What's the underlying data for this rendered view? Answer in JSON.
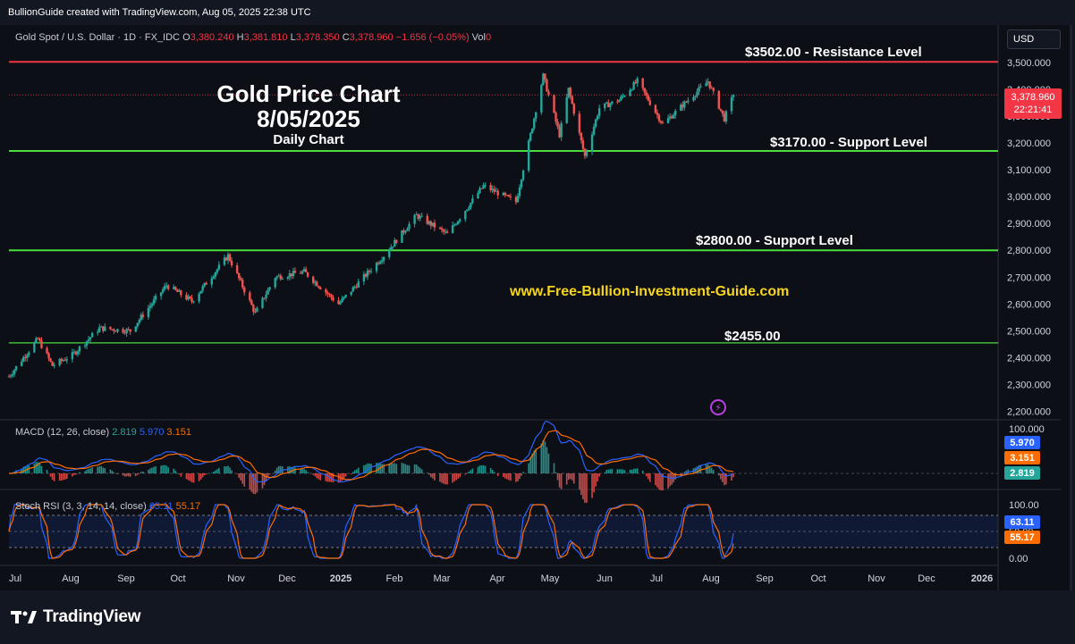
{
  "header": {
    "caption": "BullionGuide created with TradingView.com, Aug 05, 2025 22:38 UTC"
  },
  "legend": {
    "symbol": "Gold Spot / U.S. Dollar · 1D · FX_IDC",
    "o_label": "O",
    "o": "3,380.240",
    "h_label": "H",
    "h": "3,381.810",
    "l_label": "L",
    "l": "3,378.350",
    "c_label": "C",
    "c": "3,378.960",
    "change": "−1.656 (−0.05%)",
    "vol_label": "Vol",
    "vol": "0"
  },
  "currency": "USD",
  "overlay": {
    "title_line1": "Gold Price Chart",
    "title_line2": "8/05/2025",
    "subtitle": "Daily Chart",
    "website": "www.Free-Bullion-Investment-Guide.com"
  },
  "levels": [
    {
      "label": "$3502.00 - Resistance Level",
      "value": 3502,
      "color": "#f23645"
    },
    {
      "label": "$3170.00 - Support Level",
      "value": 3170,
      "color": "#4cdc3f"
    },
    {
      "label": "$2800.00 - Support Level",
      "value": 2800,
      "color": "#4cdc3f"
    },
    {
      "label": "$2455.00",
      "value": 2455,
      "color": "#4cdc3f"
    }
  ],
  "price_tag": {
    "price": "3,378.960",
    "countdown": "22:21:41"
  },
  "macd": {
    "legend_name": "MACD (12, 26, close)",
    "v1": "2.819",
    "v2": "5.970",
    "v3": "3.151",
    "scale_top": "100.000",
    "tags": {
      "macd": "5.970",
      "signal": "3.151",
      "hist": "2.819"
    },
    "colors": {
      "macd": "#2962ff",
      "signal": "#ff6d00",
      "hist_up": "#26a69a",
      "hist_down": "#ef5350"
    }
  },
  "stoch": {
    "legend_name": "Stoch RSI (3, 3, 14, 14, close)",
    "k": "63.11",
    "d": "55.17",
    "scale": [
      "100.00",
      "50.00",
      "0.00"
    ],
    "tags": {
      "k": "63.11",
      "d": "55.17"
    },
    "colors": {
      "k": "#2962ff",
      "d": "#ff6d00"
    }
  },
  "brand": "TradingView",
  "chart_data": {
    "type": "candlestick",
    "symbol": "Gold Spot / U.S. Dollar",
    "interval": "1D",
    "y_axis_labels": [
      "3,500.000",
      "3,400.000",
      "3,300.000",
      "3,200.000",
      "3,100.000",
      "3,000.000",
      "2,900.000",
      "2,800.000",
      "2,700.000",
      "2,600.000",
      "2,500.000",
      "2,400.000",
      "2,300.000",
      "2,200.000"
    ],
    "ylim": [
      2190,
      3560
    ],
    "x_labels": [
      "Jul",
      "Aug",
      "Sep",
      "Oct",
      "Nov",
      "Dec",
      "2025",
      "Feb",
      "Mar",
      "Apr",
      "May",
      "Jun",
      "Jul",
      "Aug",
      "Sep",
      "Oct",
      "Nov",
      "Dec",
      "2026"
    ],
    "approx_path": [
      [
        "2024-07-01",
        2330
      ],
      [
        "2024-07-17",
        2470
      ],
      [
        "2024-07-25",
        2370
      ],
      [
        "2024-08-05",
        2410
      ],
      [
        "2024-08-20",
        2510
      ],
      [
        "2024-09-06",
        2500
      ],
      [
        "2024-09-26",
        2670
      ],
      [
        "2024-10-10",
        2610
      ],
      [
        "2024-10-30",
        2780
      ],
      [
        "2024-11-14",
        2565
      ],
      [
        "2024-11-25",
        2700
      ],
      [
        "2024-12-11",
        2720
      ],
      [
        "2024-12-30",
        2600
      ],
      [
        "2025-01-24",
        2780
      ],
      [
        "2025-02-11",
        2930
      ],
      [
        "2025-02-28",
        2860
      ],
      [
        "2025-03-20",
        3040
      ],
      [
        "2025-04-07",
        2980
      ],
      [
        "2025-04-22",
        3450
      ],
      [
        "2025-05-01",
        3230
      ],
      [
        "2025-05-06",
        3400
      ],
      [
        "2025-05-15",
        3150
      ],
      [
        "2025-05-23",
        3330
      ],
      [
        "2025-06-03",
        3360
      ],
      [
        "2025-06-13",
        3430
      ],
      [
        "2025-06-27",
        3270
      ],
      [
        "2025-07-22",
        3430
      ],
      [
        "2025-07-31",
        3290
      ],
      [
        "2025-08-05",
        3379
      ]
    ],
    "last": {
      "open": 3380.24,
      "high": 3381.81,
      "low": 3378.35,
      "close": 3378.96
    }
  }
}
